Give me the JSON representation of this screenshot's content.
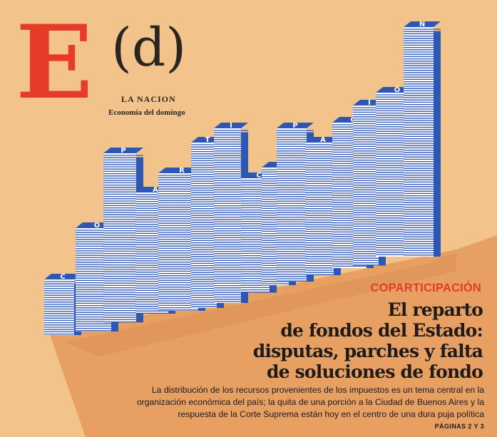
{
  "masthead": {
    "letter": "E",
    "section": "(d)",
    "brand": "LA NACION",
    "subtitle": "Economía del domingo"
  },
  "article": {
    "kicker": "COPARTICIPACIÓN",
    "headline_lines": [
      "El reparto",
      "de fondos del Estado:",
      "disputas, parches y falta",
      "de soluciones de fondo"
    ],
    "deck_lines": [
      "La distribución de los recursos provenientes de los impuestos es un tema central en la",
      "organización económica del país; la quita de una porción a la Ciudad de Buenos Aires y la",
      "respuesta de la Corte Suprema están hoy en el centro de una dura puja política"
    ],
    "pages_ref": "PÁGINAS 2 Y 3"
  },
  "illustration": {
    "word": "COPARTICIPACIÓN",
    "letters": [
      "C",
      "O",
      "P",
      "A",
      "R",
      "T",
      "I",
      "C",
      "I",
      "P",
      "A",
      "C",
      "I",
      "Ó",
      "N"
    ],
    "colors": {
      "stripe": "#2e56b5",
      "paper": "#ffffff",
      "floor": "#e79f62",
      "background": "#f2c48c",
      "accent": "#e63b27"
    }
  }
}
